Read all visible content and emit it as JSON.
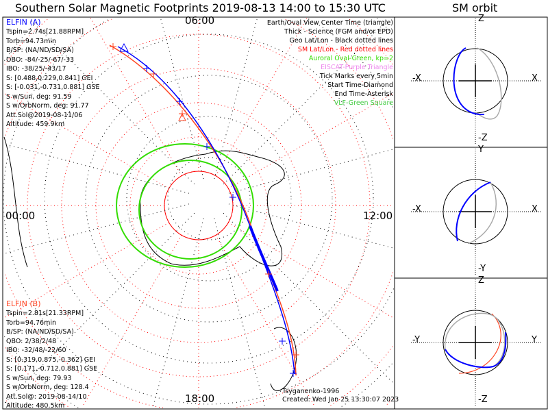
{
  "title": "Southern Solar Magnetic Footprints 2019-08-13 14:00 to 15:30 UTC",
  "orbit_title": "SM orbit",
  "mlt_labels": {
    "top": "06:00",
    "left": "00:00",
    "right": "12:00",
    "bottom": "18:00"
  },
  "elfin_a": {
    "name": "ELFIN (A)",
    "lines": [
      "Tspin=2.74s[21.88RPM]",
      "Torb=94.73min",
      "B/SP: (NA/ND/SD/SA)",
      "OBO: -84/-25/-67/-33",
      "IBO: -38/25/-43/17",
      "S: [0.488,0.229,0.841] GEI",
      "S: [-0.031,-0.731,0.881] GSE",
      "S w/Sun, deg: 91.59",
      "S w/OrbNorm, deg: 91.77",
      "Att.Sol@2019-08-11/06",
      "Altitude: 459.9km"
    ]
  },
  "elfin_b": {
    "name": "ELFIN (B)",
    "lines": [
      "Tspin=2.81s[21.33RPM]",
      "Torb=94.76min",
      "B/SP: (NA/ND/SD/SA)",
      "OBO: 2/38/2/48",
      "IBO: -32/48/-22/60",
      "S: [0.319,0.875,-0.362] GEI",
      "S: [0.171,-0.712,0.881] GSE",
      "S w/Sun, deg: 79.93",
      "S w/OrbNorm, deg: 128.4",
      "Att.Sol@: 2019-08-14/10",
      "Altitude: 480.5km"
    ]
  },
  "legend": [
    {
      "text": "Earth/Oval View Center Time (triangle)",
      "color": "#000000"
    },
    {
      "text": "Thick - Science (FGM and/or EPD)",
      "color": "#000000"
    },
    {
      "text": "Geo Lat/Lon - Black dotted lines",
      "color": "#000000"
    },
    {
      "text": "SM Lat/Lon - Red dotted lines",
      "color": "#ff0000"
    },
    {
      "text": "Auroral Oval-Green, kp=2",
      "color": "#33dd00"
    },
    {
      "text": "EISCAT-Purple Triangle",
      "color": "#ee88ee"
    },
    {
      "text": "Tick Marks every 5min",
      "color": "#000000"
    },
    {
      "text": "Start Time-Diamond",
      "color": "#000000"
    },
    {
      "text": "End Time-Asterisk",
      "color": "#000000"
    },
    {
      "text": "VLF-Green Square",
      "color": "#44cc44"
    }
  ],
  "footer": {
    "model": "Tsyganenko-1996",
    "created": "Created: Wed Jan 25 13:30:07 2023"
  },
  "orbit_panels": [
    {
      "top": "Z",
      "bottom": "-Z",
      "left": "-X",
      "right": "X"
    },
    {
      "top": "Y",
      "bottom": "-Y",
      "left": "-X",
      "right": "X"
    },
    {
      "top": "Z",
      "bottom": "-Z",
      "left": "-Y",
      "right": "Y"
    }
  ],
  "colors": {
    "elfin_a": "#0000ff",
    "elfin_b": "#ff4422",
    "oval": "#33dd00",
    "sm_grid": "#ff0000",
    "geo_grid": "#000000"
  }
}
